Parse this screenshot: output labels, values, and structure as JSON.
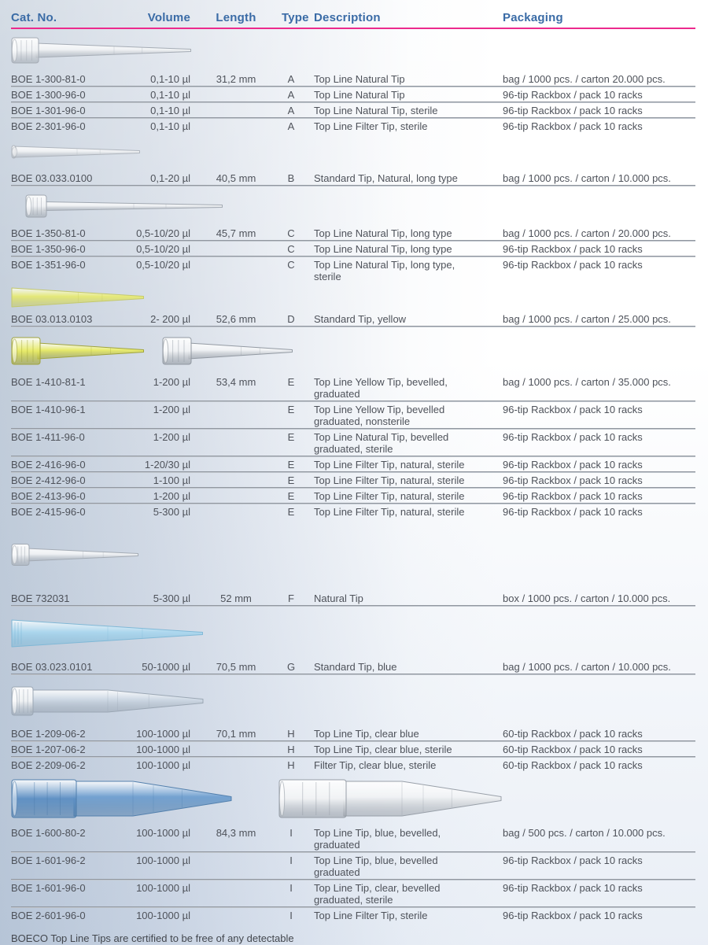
{
  "table": {
    "columns": [
      "Cat. No.",
      "Volume",
      "Length",
      "Type",
      "Description",
      "Packaging"
    ],
    "sections": [
      {
        "type_label": "A",
        "tips": [
          "tip-natural-micro"
        ],
        "rows": [
          {
            "cat_no": "BOE 1-300-81-0",
            "volume": "0,1-10 µl",
            "length": "31,2 mm",
            "type": "A",
            "description": "Top Line Natural Tip",
            "packaging": "bag / 1000 pcs. / carton 20.000 pcs."
          },
          {
            "cat_no": "BOE 1-300-96-0",
            "volume": "0,1-10 µl",
            "length": "",
            "type": "A",
            "description": "Top Line Natural Tip",
            "packaging": "96-tip Rackbox / pack 10 racks"
          },
          {
            "cat_no": "BOE 1-301-96-0",
            "volume": "0,1-10 µl",
            "length": "",
            "type": "A",
            "description": "Top Line Natural Tip, sterile",
            "packaging": "96-tip Rackbox / pack 10 racks"
          },
          {
            "cat_no": "BOE 2-301-96-0",
            "volume": "0,1-10 µl",
            "length": "",
            "type": "A",
            "description": "Top Line Filter Tip, sterile",
            "packaging": "96-tip Rackbox / pack 10 racks"
          }
        ]
      },
      {
        "type_label": "B",
        "tips": [
          "tip-natural-long-flat"
        ],
        "rows": [
          {
            "cat_no": "BOE 03.033.0100",
            "volume": "0,1-20 µl",
            "length": "40,5 mm",
            "type": "B",
            "description": "Standard Tip, Natural, long type",
            "packaging": "bag / 1000 pcs. / carton / 10.000 pcs."
          }
        ]
      },
      {
        "type_label": "C",
        "tips": [
          "tip-natural-long-collared"
        ],
        "rows": [
          {
            "cat_no": "BOE 1-350-81-0",
            "volume": "0,5-10/20 µl",
            "length": "45,7 mm",
            "type": "C",
            "description": "Top Line Natural Tip, long type",
            "packaging": "bag / 1000 pcs. / carton / 20.000 pcs."
          },
          {
            "cat_no": "BOE 1-350-96-0",
            "volume": "0,5-10/20 µl",
            "length": "",
            "type": "C",
            "description": "Top Line Natural Tip, long type",
            "packaging": "96-tip Rackbox / pack 10 racks"
          },
          {
            "cat_no": "BOE 1-351-96-0",
            "volume": "0,5-10/20 µl",
            "length": "",
            "type": "C",
            "description": "Top Line Natural Tip, long type,\nsterile",
            "packaging": "96-tip Rackbox / pack 10 racks"
          }
        ]
      },
      {
        "type_label": "D",
        "tips": [
          "tip-yellow-standard"
        ],
        "rows": [
          {
            "cat_no": "BOE 03.013.0103",
            "volume": "2- 200 µl",
            "length": "52,6 mm",
            "type": "D",
            "description": "Standard Tip, yellow",
            "packaging": "bag / 1000 pcs. / carton / 25.000 pcs."
          }
        ]
      },
      {
        "type_label": "E",
        "tips": [
          "tip-yellow-topline",
          "tip-natural-topline"
        ],
        "rows": [
          {
            "cat_no": "BOE 1-410-81-1",
            "volume": "1-200 µl",
            "length": "53,4 mm",
            "type": "E",
            "description": "Top Line Yellow Tip, bevelled,\ngraduated",
            "packaging": "bag / 1000 pcs. / carton / 35.000 pcs."
          },
          {
            "cat_no": "BOE 1-410-96-1",
            "volume": "1-200 µl",
            "length": "",
            "type": "E",
            "description": "Top Line Yellow Tip, bevelled\ngraduated, nonsterile",
            "packaging": "96-tip Rackbox / pack 10 racks"
          },
          {
            "cat_no": "BOE 1-411-96-0",
            "volume": "1-200 µl",
            "length": "",
            "type": "E",
            "description": "Top Line Natural Tip, bevelled\ngraduated, sterile",
            "packaging": "96-tip Rackbox / pack 10 racks"
          },
          {
            "cat_no": "BOE 2-416-96-0",
            "volume": "1-20/30 µl",
            "length": "",
            "type": "E",
            "description": "Top Line Filter Tip, natural, sterile",
            "packaging": "96-tip Rackbox / pack 10 racks"
          },
          {
            "cat_no": "BOE 2-412-96-0",
            "volume": "1-100 µl",
            "length": "",
            "type": "E",
            "description": "Top Line Filter Tip, natural, sterile",
            "packaging": "96-tip Rackbox / pack 10 racks"
          },
          {
            "cat_no": "BOE 2-413-96-0",
            "volume": "1-200 µl",
            "length": "",
            "type": "E",
            "description": "Top Line Filter Tip, natural, sterile",
            "packaging": "96-tip Rackbox / pack 10 racks"
          },
          {
            "cat_no": "BOE 2-415-96-0",
            "volume": "5-300 µl",
            "length": "",
            "type": "E",
            "description": "Top Line Filter Tip, natural, sterile",
            "packaging": "96-tip Rackbox / pack 10 racks"
          }
        ]
      },
      {
        "type_label": "F",
        "tips": [
          "tip-natural-300"
        ],
        "rows": [
          {
            "cat_no": "BOE 732031",
            "volume": "5-300 µl",
            "length": "52 mm",
            "type": "F",
            "description": "Natural Tip",
            "packaging": "box / 1000 pcs. / carton / 10.000 pcs."
          }
        ]
      },
      {
        "type_label": "G",
        "tips": [
          "tip-blue-standard"
        ],
        "rows": [
          {
            "cat_no": "BOE 03.023.0101",
            "volume": "50-1000 µl",
            "length": "70,5 mm",
            "type": "G",
            "description": "Standard Tip, blue",
            "packaging": "bag / 1000 pcs. / carton / 10.000 pcs."
          }
        ]
      },
      {
        "type_label": "H",
        "tips": [
          "tip-clearblue-1000"
        ],
        "rows": [
          {
            "cat_no": "BOE 1-209-06-2",
            "volume": "100-1000 µl",
            "length": "70,1 mm",
            "type": "H",
            "description": "Top Line Tip, clear blue",
            "packaging": "60-tip Rackbox / pack 10 racks"
          },
          {
            "cat_no": "BOE 1-207-06-2",
            "volume": "100-1000 µl",
            "length": "",
            "type": "H",
            "description": "Top Line Tip, clear blue, sterile",
            "packaging": "60-tip Rackbox / pack 10 racks"
          },
          {
            "cat_no": "BOE 2-209-06-2",
            "volume": "100-1000 µl",
            "length": "",
            "type": "H",
            "description": "Filter Tip, clear blue, sterile",
            "packaging": "60-tip Rackbox / pack 10 racks"
          }
        ]
      },
      {
        "type_label": "I",
        "tips": [
          "tip-blue-1000",
          "tip-natural-1000"
        ],
        "rows": [
          {
            "cat_no": "BOE 1-600-80-2",
            "volume": "100-1000 µl",
            "length": "84,3 mm",
            "type": "I",
            "description": "Top Line Tip, blue, bevelled,\ngraduated",
            "packaging": "bag / 500 pcs. / carton / 10.000 pcs."
          },
          {
            "cat_no": "BOE 1-601-96-2",
            "volume": "100-1000 µl",
            "length": "",
            "type": "I",
            "description": "Top Line Tip, blue, bevelled\ngraduated",
            "packaging": "96-tip Rackbox / pack 10 racks"
          },
          {
            "cat_no": "BOE 1-601-96-0",
            "volume": "100-1000 µl",
            "length": "",
            "type": "I",
            "description": "Top Line Tip, clear, bevelled\ngraduated, sterile",
            "packaging": "96-tip Rackbox / pack 10 racks"
          },
          {
            "cat_no": "BOE 2-601-96-0",
            "volume": "100-1000 µl",
            "length": "",
            "type": "I",
            "description": "Top Line Filter Tip, sterile",
            "packaging": "96-tip Rackbox / pack 10 racks"
          }
        ]
      }
    ]
  },
  "footer": {
    "note": "BOECO Top Line Tips are certified to be free of any detectable\nhuman DNA, DNase, RNase and PCR-inhibitors."
  },
  "colors": {
    "header_text": "#3a6ba6",
    "header_rule": "#ec2a8d",
    "row_text": "#4e525a",
    "divider_dark": "#7a808a",
    "divider_light": "#d8dde3",
    "tip_natural": "#f1f3f5",
    "tip_yellow": "#e9ec66",
    "tip_blue": "#6f9fd0",
    "tip_blue_dark": "#5e90c4",
    "tip_light_blue": "#a9d7ef",
    "tip_clear_blue": "#ccd7e3"
  }
}
